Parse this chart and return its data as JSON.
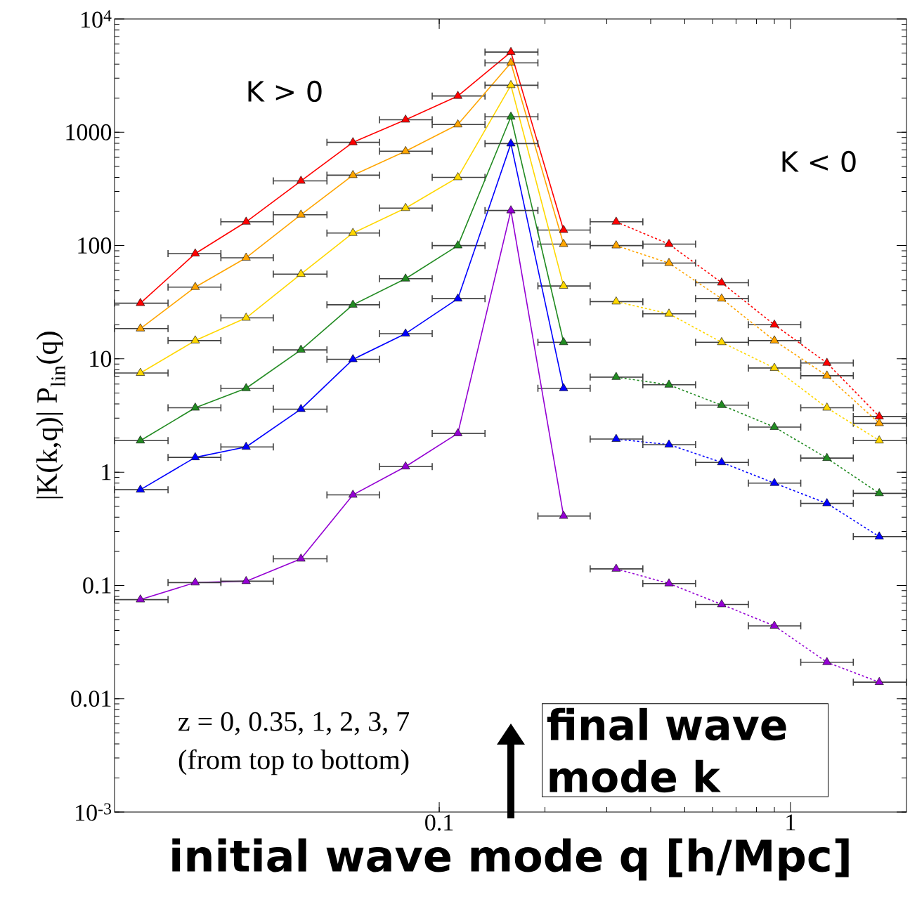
{
  "chart_data": {
    "type": "line",
    "log": "xy",
    "marker": "triangle",
    "line_style": "solid",
    "xlabel": "initial wave mode q [h/Mpc]",
    "ylabel": "|K(k,q)| P$_{lin}$(q)",
    "xlim": [
      0.0119,
      2.14
    ],
    "ylim": [
      0.001,
      10000
    ],
    "xticks": [
      0.1,
      1
    ],
    "yticks": [
      {
        "value": 0.001,
        "label": "10$^{-3}$"
      },
      0.01,
      0.1,
      1,
      10,
      100,
      1000,
      {
        "value": 10000,
        "label": "10$^{4}$"
      }
    ],
    "annotations": [
      "K > 0",
      "K < 0",
      "z = 0, 0.35, 1, 2, 3, 7",
      "(from top to bottom)",
      "final wave mode k"
    ],
    "series": [
      {
        "color": "#ff0000",
        "x": [
          0.0141,
          0.0202,
          0.0282,
          0.0404,
          0.0568,
          0.0802,
          0.113,
          0.16,
          0.226
        ],
        "values": [
          31,
          85,
          162,
          372,
          815,
          1290,
          2090,
          5100,
          137
        ],
        "xerrors": [
          [
            0.0119,
            0.0169
          ],
          [
            0.0169,
            0.0239
          ],
          [
            0.0239,
            0.0337
          ],
          [
            0.0337,
            0.0479
          ],
          [
            0.0479,
            0.0676
          ],
          [
            0.0676,
            0.0955
          ],
          [
            0.0955,
            0.135
          ],
          [
            0.135,
            0.191
          ],
          [
            0.191,
            0.269
          ]
        ]
      },
      {
        "color": "#ffa500",
        "x": [
          0.0141,
          0.0202,
          0.0282,
          0.0404,
          0.0568,
          0.0802,
          0.113,
          0.16,
          0.226
        ],
        "values": [
          18.5,
          43,
          78,
          187,
          418,
          680,
          1170,
          4100,
          103
        ],
        "xerrors": [
          [
            0.0119,
            0.0169
          ],
          [
            0.0169,
            0.0239
          ],
          [
            0.0239,
            0.0337
          ],
          [
            0.0337,
            0.0479
          ],
          [
            0.0479,
            0.0676
          ],
          [
            0.0676,
            0.0955
          ],
          [
            0.0955,
            0.135
          ],
          [
            0.135,
            0.191
          ],
          [
            0.191,
            0.269
          ]
        ]
      },
      {
        "color": "#ffd700",
        "x": [
          0.0141,
          0.0202,
          0.0282,
          0.0404,
          0.0568,
          0.0802,
          0.113,
          0.16,
          0.226
        ],
        "values": [
          7.5,
          14.5,
          23,
          56,
          129,
          214,
          400,
          2600,
          44
        ],
        "xerrors": [
          [
            0.0119,
            0.0169
          ],
          [
            0.0169,
            0.0239
          ],
          [
            0.0239,
            0.0337
          ],
          [
            0.0337,
            0.0479
          ],
          [
            0.0479,
            0.0676
          ],
          [
            0.0676,
            0.0955
          ],
          [
            0.0955,
            0.135
          ],
          [
            0.135,
            0.191
          ],
          [
            0.191,
            0.269
          ]
        ]
      },
      {
        "color": "#228b22",
        "x": [
          0.0141,
          0.0202,
          0.0282,
          0.0404,
          0.0568,
          0.0802,
          0.113,
          0.16,
          0.226
        ],
        "values": [
          1.9,
          3.7,
          5.5,
          12,
          30,
          51,
          100,
          1370,
          14
        ],
        "xerrors": [
          [
            0.0119,
            0.0169
          ],
          [
            0.0169,
            0.0239
          ],
          [
            0.0239,
            0.0337
          ],
          [
            0.0337,
            0.0479
          ],
          [
            0.0479,
            0.0676
          ],
          [
            0.0676,
            0.0955
          ],
          [
            0.0955,
            0.135
          ],
          [
            0.135,
            0.191
          ],
          [
            0.191,
            0.269
          ]
        ]
      },
      {
        "color": "#0000ff",
        "x": [
          0.0141,
          0.0202,
          0.0282,
          0.0404,
          0.0568,
          0.0802,
          0.113,
          0.16,
          0.226
        ],
        "values": [
          0.7,
          1.35,
          1.67,
          3.6,
          9.9,
          16.7,
          34,
          795,
          5.5
        ],
        "xerrors": [
          [
            0.0119,
            0.0169
          ],
          [
            0.0169,
            0.0239
          ],
          [
            0.0239,
            0.0337
          ],
          [
            0.0337,
            0.0479
          ],
          [
            0.0479,
            0.0676
          ],
          [
            0.0676,
            0.0955
          ],
          [
            0.0955,
            0.135
          ],
          [
            0.135,
            0.191
          ],
          [
            0.191,
            0.269
          ]
        ]
      },
      {
        "color": "#9400d3",
        "x": [
          0.0141,
          0.0202,
          0.0282,
          0.0404,
          0.0568,
          0.0802,
          0.113,
          0.16,
          0.226
        ],
        "values": [
          0.075,
          0.106,
          0.109,
          0.172,
          0.63,
          1.12,
          2.2,
          204,
          0.41
        ],
        "xerrors": [
          [
            0.0119,
            0.0169
          ],
          [
            0.0169,
            0.0239
          ],
          [
            0.0239,
            0.0337
          ],
          [
            0.0337,
            0.0479
          ],
          [
            0.0479,
            0.0676
          ],
          [
            0.0676,
            0.0955
          ],
          [
            0.0955,
            0.135
          ],
          [
            0.135,
            0.191
          ],
          [
            0.191,
            0.269
          ]
        ]
      },
      {
        "color": "#ff0000",
        "line_style": "dashed",
        "x": [
          0.319,
          0.451,
          0.637,
          0.9,
          1.27,
          1.79
        ],
        "values": [
          162,
          103,
          47,
          20,
          9.2,
          3.1
        ],
        "xerrors": [
          [
            0.269,
            0.38
          ],
          [
            0.38,
            0.537
          ],
          [
            0.537,
            0.759
          ],
          [
            0.759,
            1.07
          ],
          [
            1.07,
            1.51
          ],
          [
            1.51,
            2.14
          ]
        ]
      },
      {
        "color": "#ffa500",
        "line_style": "dashed",
        "x": [
          0.319,
          0.451,
          0.637,
          0.9,
          1.27,
          1.79
        ],
        "values": [
          100,
          70,
          34,
          14.5,
          7.1,
          2.7
        ],
        "xerrors": [
          [
            0.269,
            0.38
          ],
          [
            0.38,
            0.537
          ],
          [
            0.537,
            0.759
          ],
          [
            0.759,
            1.07
          ],
          [
            1.07,
            1.51
          ],
          [
            1.51,
            2.14
          ]
        ]
      },
      {
        "color": "#ffd700",
        "line_style": "dashed",
        "x": [
          0.319,
          0.451,
          0.637,
          0.9,
          1.27,
          1.79
        ],
        "values": [
          32,
          25,
          14,
          8.3,
          3.7,
          1.9
        ],
        "xerrors": [
          [
            0.269,
            0.38
          ],
          [
            0.38,
            0.537
          ],
          [
            0.537,
            0.759
          ],
          [
            0.759,
            1.07
          ],
          [
            1.07,
            1.51
          ],
          [
            1.51,
            2.14
          ]
        ]
      },
      {
        "color": "#228b22",
        "line_style": "dashed",
        "x": [
          0.319,
          0.451,
          0.637,
          0.9,
          1.27,
          1.79
        ],
        "values": [
          6.9,
          5.9,
          3.9,
          2.5,
          1.33,
          0.65
        ],
        "xerrors": [
          [
            0.269,
            0.38
          ],
          [
            0.38,
            0.537
          ],
          [
            0.537,
            0.759
          ],
          [
            0.759,
            1.07
          ],
          [
            1.07,
            1.51
          ],
          [
            1.51,
            2.14
          ]
        ]
      },
      {
        "color": "#0000ff",
        "line_style": "dashed",
        "x": [
          0.319,
          0.451,
          0.637,
          0.9,
          1.27,
          1.79
        ],
        "values": [
          1.96,
          1.75,
          1.22,
          0.8,
          0.53,
          0.27
        ],
        "xerrors": [
          [
            0.269,
            0.38
          ],
          [
            0.38,
            0.537
          ],
          [
            0.537,
            0.759
          ],
          [
            0.759,
            1.07
          ],
          [
            1.07,
            1.51
          ],
          [
            1.51,
            2.14
          ]
        ]
      },
      {
        "color": "#9400d3",
        "line_style": "dashed",
        "x": [
          0.319,
          0.451,
          0.637,
          0.9,
          1.27,
          1.79
        ],
        "values": [
          0.14,
          0.104,
          0.068,
          0.044,
          0.021,
          0.014
        ],
        "xerrors": [
          [
            0.269,
            0.38
          ],
          [
            0.38,
            0.537
          ],
          [
            0.537,
            0.759
          ],
          [
            0.759,
            1.07
          ],
          [
            1.07,
            1.51
          ],
          [
            1.51,
            2.14
          ]
        ]
      }
    ]
  }
}
